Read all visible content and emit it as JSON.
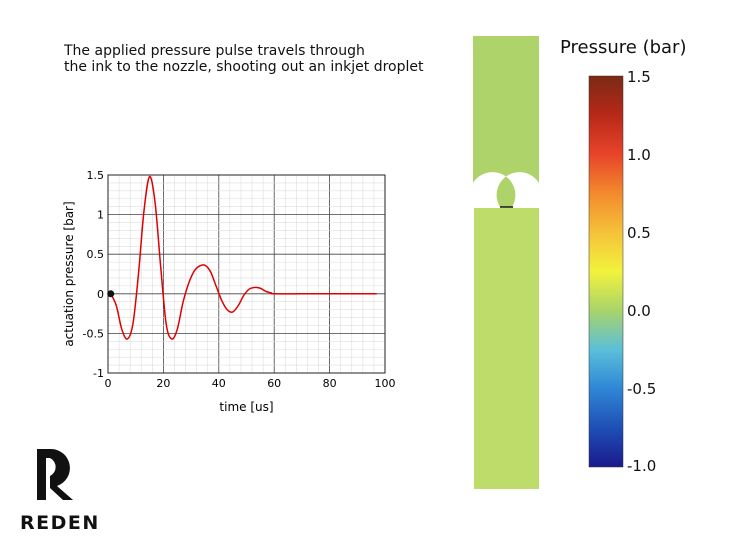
{
  "caption": {
    "line1": "The applied pressure pulse travels through",
    "line2": "the ink to the nozzle, shooting out an inkjet droplet"
  },
  "logo": {
    "text": "REDEN"
  },
  "colorbar": {
    "title": "Pressure (bar)",
    "ticks": [
      "1.5",
      "1.0",
      "0.5",
      "0.0",
      "-0.5",
      "-1.0"
    ],
    "range": [
      -1.0,
      1.5
    ],
    "colors": [
      "#1a1a8c",
      "#1f4fb5",
      "#2f86d6",
      "#5bbfd9",
      "#a8d46b",
      "#f2f23c",
      "#f5c23a",
      "#f28a2c",
      "#e8442a",
      "#b72818",
      "#7a2a14"
    ]
  },
  "nozzle": {
    "upper_color": "#aed36a",
    "lower_color": "#bedc6a"
  },
  "chart_data": {
    "type": "line",
    "xlabel": "time [us]",
    "ylabel": "actuation pressure [bar]",
    "xlim": [
      0,
      100
    ],
    "ylim": [
      -1,
      1.5
    ],
    "xticks": [
      0,
      20,
      40,
      60,
      80,
      100
    ],
    "yticks": [
      -1,
      -0.5,
      0,
      0.5,
      1,
      1.5
    ],
    "ytick_labels": [
      "-1",
      "-0.5",
      "0",
      "0.5",
      "1",
      "1.5"
    ],
    "grid": true,
    "line_color": "#e00000",
    "series": [
      {
        "x": [
          1,
          3,
          5,
          7,
          9,
          11,
          13,
          15,
          17,
          19,
          21,
          23,
          25,
          27,
          29,
          31,
          33,
          35,
          37,
          39,
          41,
          43,
          45,
          47,
          49,
          51,
          53,
          55,
          57,
          59,
          60,
          70,
          80,
          90,
          97
        ],
        "values": [
          0,
          -0.15,
          -0.45,
          -0.57,
          -0.38,
          0.25,
          1.05,
          1.48,
          1.15,
          0.35,
          -0.38,
          -0.57,
          -0.45,
          -0.12,
          0.12,
          0.28,
          0.35,
          0.36,
          0.28,
          0.1,
          -0.08,
          -0.2,
          -0.23,
          -0.15,
          -0.02,
          0.06,
          0.08,
          0.07,
          0.03,
          0.01,
          0,
          0,
          0,
          0,
          0
        ]
      }
    ],
    "marker": {
      "x": 1,
      "y": 0
    }
  }
}
